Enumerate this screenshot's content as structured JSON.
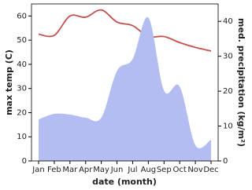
{
  "chart_data": {
    "type": "line_area",
    "x_label": "date (month)",
    "y_label": "max temp (C)",
    "y2_label": "med. precipitation (kg/m²)",
    "categories": [
      "Jan",
      "Feb",
      "Mar",
      "Apr",
      "May",
      "Jun",
      "Jul",
      "Aug",
      "Sep",
      "Oct",
      "Nov",
      "Dec"
    ],
    "series": [
      {
        "name": "max temp",
        "type": "line",
        "color": "#c55050",
        "values": [
          52.5,
          52,
          60,
          59.5,
          62.5,
          57.5,
          56,
          51.5,
          51.5,
          49,
          47,
          45.5
        ]
      },
      {
        "name": "med. precipitation",
        "type": "area",
        "axis": "y2",
        "color": "#b3bdf2",
        "values": [
          11.9,
          13.5,
          13.3,
          12.4,
          12.4,
          25.8,
          29.2,
          41.1,
          20.2,
          21.3,
          4.5,
          6.1
        ]
      }
    ],
    "ylim": [
      0,
      65
    ],
    "yticks": [
      0,
      10,
      20,
      30,
      40,
      50,
      60
    ],
    "y2lim": [
      0,
      45
    ],
    "y2ticks": [
      0,
      10,
      20,
      30,
      40
    ]
  }
}
